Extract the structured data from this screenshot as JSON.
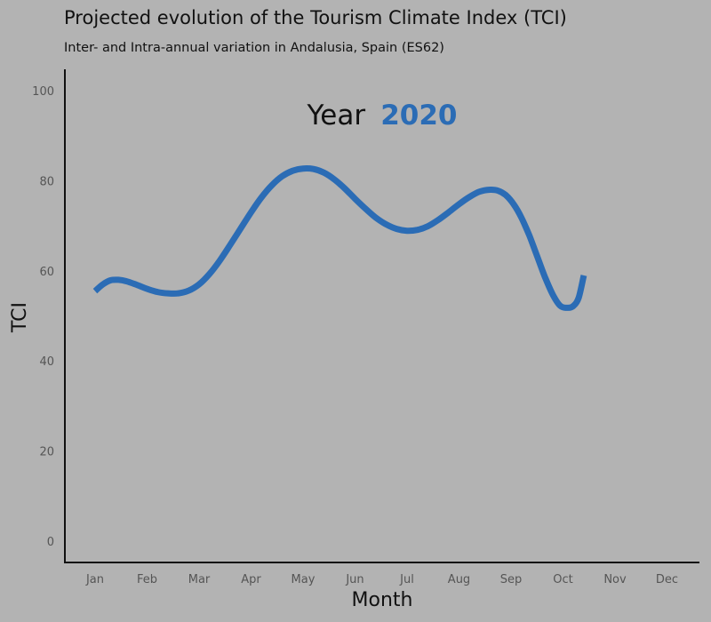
{
  "chart_data": {
    "type": "line",
    "title": "Projected evolution of the Tourism Climate Index (TCI)",
    "subtitle": "Inter- and Intra-annual variation in Andalusia, Spain (ES62)",
    "xlabel": "Month",
    "ylabel": "TCI",
    "categories": [
      "Jan",
      "Feb",
      "Mar",
      "Apr",
      "May",
      "Jun",
      "Jul",
      "Aug",
      "Sep",
      "Oct",
      "Nov",
      "Dec"
    ],
    "ylim": [
      0,
      100
    ],
    "yticks": [
      0,
      20,
      40,
      60,
      80,
      100
    ],
    "annotation": {
      "label": "Year",
      "value": "2020"
    },
    "grid": false,
    "colors": {
      "line": "#2b6cb5",
      "background": "#b3b3b3",
      "axis": "#111111"
    },
    "series": [
      {
        "points": [
          [
            1.0,
            55.5
          ],
          [
            1.15,
            57.0
          ],
          [
            1.3,
            57.9
          ],
          [
            1.45,
            58.0
          ],
          [
            1.6,
            57.7
          ],
          [
            1.8,
            56.9
          ],
          [
            2.0,
            56.0
          ],
          [
            2.2,
            55.3
          ],
          [
            2.4,
            55.0
          ],
          [
            2.6,
            55.0
          ],
          [
            2.8,
            55.6
          ],
          [
            3.0,
            57.0
          ],
          [
            3.2,
            59.3
          ],
          [
            3.4,
            62.3
          ],
          [
            3.6,
            65.8
          ],
          [
            3.8,
            69.4
          ],
          [
            4.0,
            73.0
          ],
          [
            4.2,
            76.3
          ],
          [
            4.4,
            79.0
          ],
          [
            4.6,
            81.0
          ],
          [
            4.8,
            82.2
          ],
          [
            5.0,
            82.7
          ],
          [
            5.2,
            82.6
          ],
          [
            5.4,
            81.8
          ],
          [
            5.6,
            80.3
          ],
          [
            5.8,
            78.3
          ],
          [
            6.0,
            76.0
          ],
          [
            6.2,
            73.8
          ],
          [
            6.4,
            71.8
          ],
          [
            6.6,
            70.3
          ],
          [
            6.8,
            69.3
          ],
          [
            7.0,
            68.9
          ],
          [
            7.2,
            69.1
          ],
          [
            7.4,
            69.9
          ],
          [
            7.6,
            71.3
          ],
          [
            7.8,
            73.0
          ],
          [
            8.0,
            74.8
          ],
          [
            8.2,
            76.4
          ],
          [
            8.4,
            77.6
          ],
          [
            8.6,
            78.0
          ],
          [
            8.75,
            77.8
          ],
          [
            8.9,
            76.8
          ],
          [
            9.05,
            74.8
          ],
          [
            9.2,
            71.8
          ],
          [
            9.35,
            67.9
          ],
          [
            9.5,
            63.3
          ],
          [
            9.65,
            58.7
          ],
          [
            9.8,
            54.8
          ],
          [
            9.95,
            52.2
          ],
          [
            10.1,
            51.8
          ],
          [
            10.2,
            52.2
          ],
          [
            10.3,
            54.0
          ],
          [
            10.4,
            59.0
          ]
        ]
      }
    ]
  }
}
